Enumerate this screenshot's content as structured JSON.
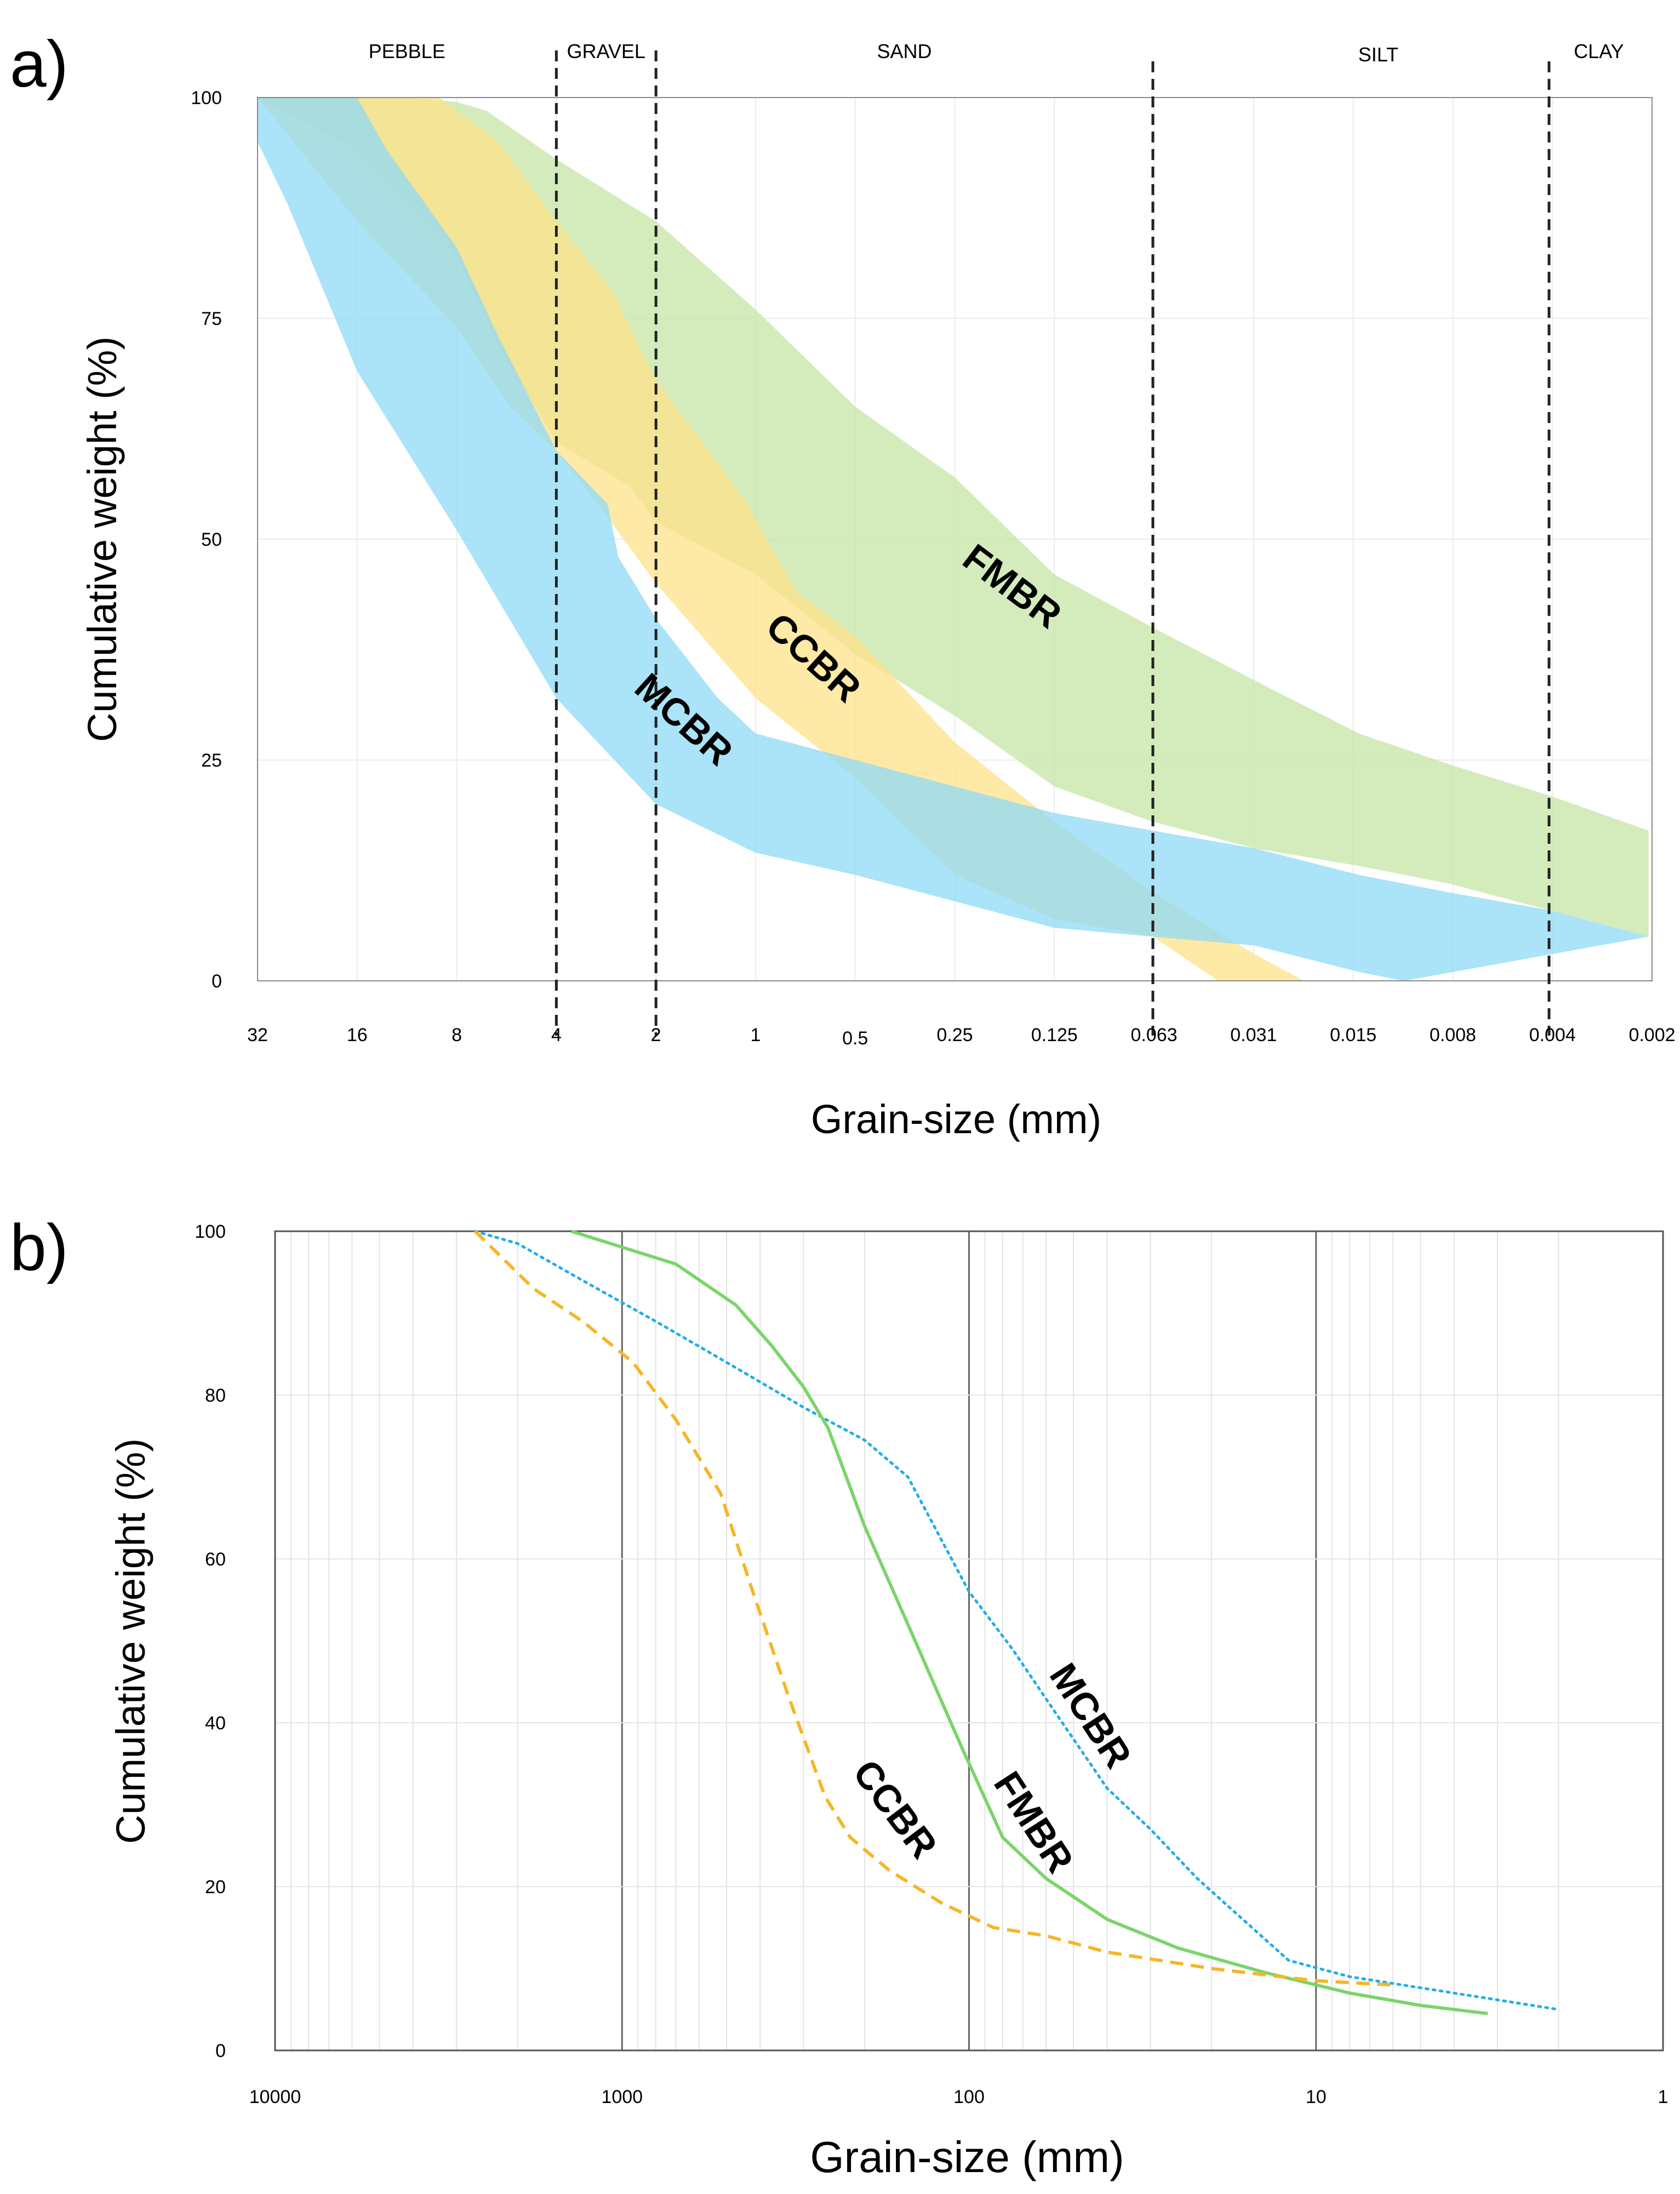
{
  "figure": {
    "panels": [
      "a)",
      "b)"
    ]
  },
  "chart_data": [
    {
      "type": "area",
      "panel_label": "a)",
      "xlabel": "Grain-size (mm)",
      "ylabel": "Cumulative weight (%)",
      "x_ticks": [
        "32",
        "16",
        "8",
        "4",
        "2",
        "1",
        "0.5",
        "0.25",
        "0.125",
        "0.063",
        "0.031",
        "0.015",
        "0.008",
        "0.004",
        "0.002"
      ],
      "y_ticks": [
        "0",
        "25",
        "50",
        "75",
        "100"
      ],
      "ylim": [
        0,
        100
      ],
      "grid": true,
      "size_classes": [
        {
          "label": "PEBBLE",
          "from": 32,
          "to": 4
        },
        {
          "label": "GRAVEL",
          "from": 4,
          "to": 2
        },
        {
          "label": "SAND",
          "from": 2,
          "to": 0.063
        },
        {
          "label": "SILT",
          "from": 0.063,
          "to": 0.004
        },
        {
          "label": "CLAY",
          "from": 0.004,
          "to": 0.002
        }
      ],
      "class_boundaries": [
        4,
        2,
        0.063,
        0.004
      ],
      "series": [
        {
          "name": "FMBR",
          "color": "#c5e5a5",
          "upper": [
            [
              32,
              100
            ],
            [
              16,
              100
            ],
            [
              11.3,
              100
            ],
            [
              8,
              99.5
            ],
            [
              6.5,
              98.5
            ],
            [
              4,
              93
            ],
            [
              2,
              86
            ],
            [
              1,
              76
            ],
            [
              0.5,
              65
            ],
            [
              0.25,
              57
            ],
            [
              0.125,
              46
            ],
            [
              0.063,
              40
            ],
            [
              0.031,
              34
            ],
            [
              0.015,
              28
            ],
            [
              0.008,
              24.5
            ],
            [
              0.004,
              21
            ],
            [
              0.002,
              17
            ]
          ],
          "lower": [
            [
              32,
              100
            ],
            [
              16,
              94
            ],
            [
              8,
              82
            ],
            [
              6,
              72
            ],
            [
              4,
              61
            ],
            [
              2.4,
              56
            ],
            [
              2,
              52
            ],
            [
              1,
              46
            ],
            [
              0.5,
              37
            ],
            [
              0.25,
              30
            ],
            [
              0.125,
              22
            ],
            [
              0.063,
              18
            ],
            [
              0.031,
              15
            ],
            [
              0.015,
              13
            ],
            [
              0.008,
              11
            ],
            [
              0.004,
              8
            ],
            [
              0.002,
              5
            ]
          ]
        },
        {
          "name": "CCBR",
          "color": "#fde18a",
          "upper": [
            [
              32,
              100
            ],
            [
              16,
              100
            ],
            [
              9,
              100
            ],
            [
              6,
              95
            ],
            [
              4,
              86
            ],
            [
              2.7,
              78
            ],
            [
              2,
              68
            ],
            [
              1.1,
              55
            ],
            [
              0.75,
              44
            ],
            [
              0.5,
              39
            ],
            [
              0.25,
              27
            ],
            [
              0.125,
              18
            ],
            [
              0.063,
              10
            ],
            [
              0.031,
              3
            ],
            [
              0.022,
              0
            ]
          ],
          "lower": [
            [
              32,
              100
            ],
            [
              16,
              86
            ],
            [
              8,
              74
            ],
            [
              5.5,
              65
            ],
            [
              4,
              60
            ],
            [
              3,
              54
            ],
            [
              2,
              45
            ],
            [
              1,
              32
            ],
            [
              0.5,
              23
            ],
            [
              0.25,
              12
            ],
            [
              0.125,
              7
            ],
            [
              0.063,
              5
            ],
            [
              0.04,
              0
            ]
          ]
        },
        {
          "name": "MCBR",
          "color": "#8fd9f5",
          "upper": [
            [
              32,
              100
            ],
            [
              16,
              100
            ],
            [
              13,
              94
            ],
            [
              8,
              83
            ],
            [
              6,
              73
            ],
            [
              4,
              60
            ],
            [
              2.8,
              54
            ],
            [
              2.6,
              48
            ],
            [
              2,
              41
            ],
            [
              1.3,
              32
            ],
            [
              1,
              28
            ],
            [
              0.5,
              25
            ],
            [
              0.25,
              22
            ],
            [
              0.125,
              19
            ],
            [
              0.063,
              17
            ],
            [
              0.031,
              15
            ],
            [
              0.015,
              12
            ],
            [
              0.008,
              10
            ],
            [
              0.004,
              8
            ],
            [
              0.002,
              5
            ]
          ],
          "lower": [
            [
              32,
              95
            ],
            [
              26,
              88
            ],
            [
              16,
              69
            ],
            [
              8,
              51
            ],
            [
              4,
              32
            ],
            [
              3,
              27
            ],
            [
              2,
              20
            ],
            [
              1,
              14.5
            ],
            [
              0.5,
              12
            ],
            [
              0.25,
              9
            ],
            [
              0.125,
              6
            ],
            [
              0.063,
              5
            ],
            [
              0.031,
              4
            ],
            [
              0.015,
              1
            ],
            [
              0.011,
              0
            ]
          ]
        }
      ],
      "annotations": [
        {
          "text": "FMBR",
          "x": 0.177,
          "y": 43.5,
          "rotate": 37
        },
        {
          "text": "CCBR",
          "x": 0.71,
          "y": 35.5,
          "rotate": 42
        },
        {
          "text": "MCBR",
          "x": 1.75,
          "y": 28.5,
          "rotate": 42
        }
      ]
    },
    {
      "type": "line",
      "panel_label": "b)",
      "xlabel": "Grain-size (mm)",
      "ylabel": "Cumulative weight (%)",
      "x_scale": "log",
      "x_reversed": true,
      "xlim": [
        10000,
        1
      ],
      "x_ticks": [
        "10000",
        "1000",
        "100",
        "10",
        "1"
      ],
      "ylim": [
        0,
        100
      ],
      "y_ticks": [
        "0",
        "20",
        "40",
        "60",
        "80",
        "100"
      ],
      "grid": true,
      "series": [
        {
          "name": "MCBR",
          "color": "#22aee8",
          "style": "dotted",
          "points": [
            [
              2650,
              100
            ],
            [
              2000,
              98.5
            ],
            [
              1300,
              94
            ],
            [
              800,
              89
            ],
            [
              500,
              84
            ],
            [
              300,
              78.5
            ],
            [
              200,
              74.5
            ],
            [
              150,
              70
            ],
            [
              100,
              56
            ],
            [
              75,
              49
            ],
            [
              58,
              42
            ],
            [
              40,
              32
            ],
            [
              30,
              27
            ],
            [
              22,
              21
            ],
            [
              12,
              11
            ],
            [
              8,
              9
            ],
            [
              4,
              7
            ],
            [
              2,
              5
            ]
          ]
        },
        {
          "name": "FMBR",
          "color": "#7cd46b",
          "style": "solid",
          "points": [
            [
              1400,
              100
            ],
            [
              700,
              96
            ],
            [
              470,
              91
            ],
            [
              370,
              86
            ],
            [
              300,
              81
            ],
            [
              255,
              76
            ],
            [
              200,
              64
            ],
            [
              150,
              52
            ],
            [
              105,
              37
            ],
            [
              80,
              26
            ],
            [
              60,
              21
            ],
            [
              40,
              16
            ],
            [
              25,
              12.5
            ],
            [
              14,
              9.5
            ],
            [
              8,
              7
            ],
            [
              5,
              5.5
            ],
            [
              3.2,
              4.5
            ]
          ]
        },
        {
          "name": "CCBR",
          "color": "#f5b627",
          "style": "dashed",
          "points": [
            [
              2650,
              100
            ],
            [
              1800,
              93
            ],
            [
              1300,
              89
            ],
            [
              930,
              84
            ],
            [
              700,
              77
            ],
            [
              520,
              68
            ],
            [
              420,
              56
            ],
            [
              330,
              43
            ],
            [
              260,
              31
            ],
            [
              220,
              26
            ],
            [
              170,
              22
            ],
            [
              120,
              18
            ],
            [
              85,
              15
            ],
            [
              60,
              14
            ],
            [
              40,
              12
            ],
            [
              20,
              10
            ],
            [
              10,
              8.5
            ],
            [
              6,
              8
            ]
          ]
        }
      ],
      "annotations": [
        {
          "text": "MCBR",
          "x": 48,
          "y": 40,
          "rotate": 57
        },
        {
          "text": "FMBR",
          "x": 70,
          "y": 27,
          "rotate": 57
        },
        {
          "text": "CCBR",
          "x": 175,
          "y": 28.5,
          "rotate": 53
        }
      ]
    }
  ]
}
